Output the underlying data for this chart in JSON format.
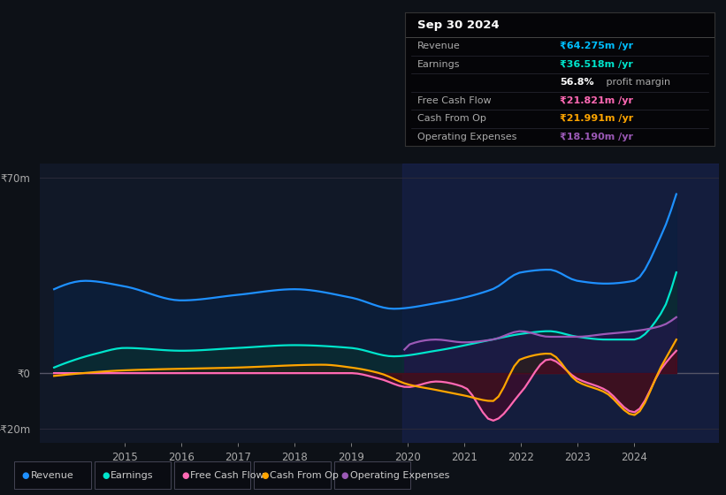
{
  "background_color": "#0d1117",
  "plot_bg_color": "#111827",
  "title": "Sep 30 2024",
  "info_box": {
    "rows": [
      {
        "label": "Revenue",
        "value": "₹64.275m /yr",
        "value_color": "#00bfff",
        "label_color": "#aaaaaa"
      },
      {
        "label": "Earnings",
        "value": "₹36.518m /yr",
        "value_color": "#00e5cc",
        "label_color": "#aaaaaa"
      },
      {
        "label": "",
        "value": "56.8% profit margin",
        "value_color": "#ffffff",
        "label_color": "#aaaaaa",
        "bold_part": "56.8%"
      },
      {
        "label": "Free Cash Flow",
        "value": "₹21.821m /yr",
        "value_color": "#ff69b4",
        "label_color": "#aaaaaa"
      },
      {
        "label": "Cash From Op",
        "value": "₹21.991m /yr",
        "value_color": "#ffa500",
        "label_color": "#aaaaaa"
      },
      {
        "label": "Operating Expenses",
        "value": "₹18.190m /yr",
        "value_color": "#9b59b6",
        "label_color": "#aaaaaa"
      }
    ]
  },
  "ylim": [
    -25,
    75
  ],
  "ytick_positions": [
    -20,
    0,
    70
  ],
  "ytick_labels": [
    "-₹20m",
    "₹0",
    "₹70m"
  ],
  "xlim": [
    2013.5,
    2025.5
  ],
  "xticks": [
    2015,
    2016,
    2017,
    2018,
    2019,
    2020,
    2021,
    2022,
    2023,
    2024
  ],
  "grid_color": "#2a2a3a",
  "zero_line_color": "#555566",
  "series": {
    "revenue": {
      "color": "#1e90ff",
      "fill_color": "#0a2040",
      "label": "Revenue",
      "dot_color": "#1e90ff"
    },
    "earnings": {
      "color": "#00e5cc",
      "fill_color": "#0a3030",
      "label": "Earnings",
      "dot_color": "#00e5cc"
    },
    "free_cash_flow": {
      "color": "#ff69b4",
      "fill_color": "#5a0020",
      "label": "Free Cash Flow",
      "dot_color": "#ff69b4"
    },
    "cash_from_op": {
      "color": "#ffa500",
      "fill_color": "#3a2000",
      "label": "Cash From Op",
      "dot_color": "#ffa500"
    },
    "operating_expenses": {
      "color": "#9b59b6",
      "fill_color": "#2a1050",
      "label": "Operating Expenses",
      "dot_color": "#9b59b6"
    }
  },
  "highlight_rect": {
    "x_start": 2019.9,
    "color": "#1a2560",
    "alpha": 0.4
  },
  "legend_items": [
    {
      "label": "Revenue",
      "color": "#1e90ff"
    },
    {
      "label": "Earnings",
      "color": "#00e5cc"
    },
    {
      "label": "Free Cash Flow",
      "color": "#ff69b4"
    },
    {
      "label": "Cash From Op",
      "color": "#ffa500"
    },
    {
      "label": "Operating Expenses",
      "color": "#9b59b6"
    }
  ]
}
